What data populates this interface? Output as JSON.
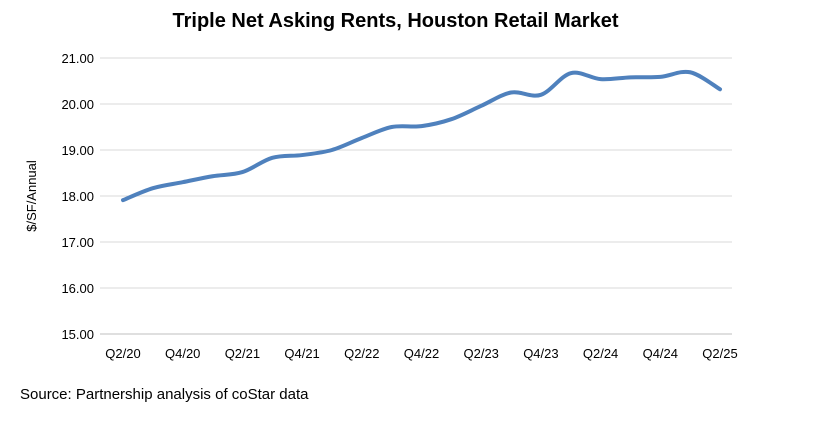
{
  "chart_data": {
    "type": "line",
    "title": "Triple Net Asking Rents, Houston Retail Market",
    "xlabel": "",
    "ylabel": "$/SF/Annual",
    "ylim": [
      15,
      21
    ],
    "yticks": [
      "15.00",
      "16.00",
      "17.00",
      "18.00",
      "19.00",
      "20.00",
      "21.00"
    ],
    "grid": true,
    "x": [
      "Q2/20",
      "Q3/20",
      "Q4/20",
      "Q1/21",
      "Q2/21",
      "Q3/21",
      "Q4/21",
      "Q1/22",
      "Q2/22",
      "Q3/22",
      "Q4/22",
      "Q1/23",
      "Q2/23",
      "Q3/23",
      "Q4/23",
      "Q1/24",
      "Q2/24",
      "Q3/24",
      "Q4/24",
      "Q1/25",
      "Q2/25"
    ],
    "xtick_labels": [
      "Q2/20",
      "Q4/20",
      "Q2/21",
      "Q4/21",
      "Q2/22",
      "Q4/22",
      "Q2/23",
      "Q4/23",
      "Q2/24",
      "Q4/24",
      "Q2/25"
    ],
    "series": [
      {
        "name": "Triple Net Asking Rent",
        "color": "#4F81BD",
        "values": [
          17.91,
          18.17,
          18.3,
          18.43,
          18.52,
          18.83,
          18.89,
          19.0,
          19.26,
          19.5,
          19.52,
          19.67,
          19.96,
          20.25,
          20.2,
          20.67,
          20.54,
          20.58,
          20.59,
          20.69,
          20.32
        ]
      }
    ]
  },
  "source": "Source: Partnership analysis of coStar data"
}
